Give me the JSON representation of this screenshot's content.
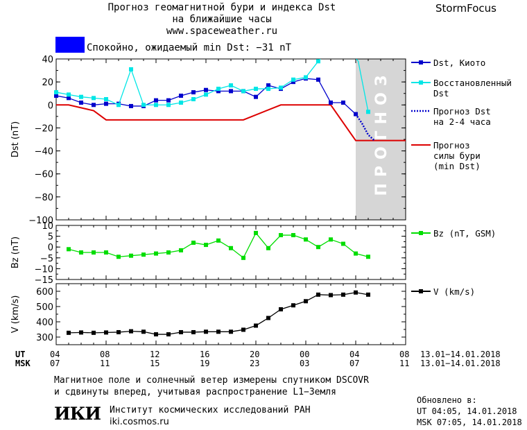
{
  "header": {
    "title_line1": "Прогноз геомагнитной бури и индекса Dst",
    "title_line2": "на ближайшие часы",
    "url": "www.spaceweather.ru",
    "brand": "StormFocus"
  },
  "status": {
    "color": "#0000ff",
    "text": "Спокойно, ожидаемый min Dst: −31 nT"
  },
  "time_axis": {
    "ut_label": "UT",
    "msk_label": "MSK",
    "ut_ticks": [
      "04",
      "08",
      "12",
      "16",
      "20",
      "00",
      "04",
      "08"
    ],
    "msk_ticks": [
      "07",
      "11",
      "15",
      "19",
      "23",
      "03",
      "07",
      "11"
    ],
    "ut_range": "13.01−14.01.2018",
    "msk_range": "13.01−14.01.2018"
  },
  "footer": {
    "line1": "Магнитное поле и солнечный ветер измерены спутником DSCOVR",
    "line2": "и сдвинуты вперед, учитывая распространение L1−Земля",
    "logo": "ИКИ",
    "institute": "Институт космических исследований РАН",
    "institute_url": "iki.cosmos.ru",
    "updated_label": "Обновлено в:",
    "updated_ut": "UT   04:05, 14.01.2018",
    "updated_msk": "MSK 07:05, 14.01.2018"
  },
  "chart_data": [
    {
      "type": "line",
      "id": "dst",
      "ylabel": "Dst (nT)",
      "ylim": [
        -100,
        40
      ],
      "yticks": [
        40,
        20,
        0,
        -20,
        -40,
        -60,
        -80,
        -100
      ],
      "x_hours_range": [
        4,
        32
      ],
      "forecast_label": "ПРОГНОЗ",
      "forecast_band_hours": [
        28,
        32
      ],
      "series": [
        {
          "name": "Dst, Киото",
          "color": "#0000cc",
          "marker": "square",
          "x": [
            4,
            5,
            6,
            7,
            8,
            9,
            10,
            11,
            12,
            13,
            14,
            15,
            16,
            17,
            18,
            19,
            20,
            21,
            22,
            23,
            24,
            25,
            26,
            27,
            28
          ],
          "y": [
            8,
            6,
            2,
            0,
            1,
            1,
            -1,
            -1,
            4,
            4,
            8,
            11,
            13,
            12,
            12,
            12,
            7,
            17,
            14,
            20,
            23,
            22,
            2,
            2,
            -8
          ]
        },
        {
          "name": "Восстановленный Dst",
          "color": "#00e6e6",
          "marker": "square",
          "x": [
            4,
            5,
            6,
            7,
            8,
            9,
            10,
            11,
            12,
            13,
            14,
            15,
            16,
            17,
            18,
            19,
            20,
            21,
            22,
            23,
            24,
            25,
            25.3,
            27.9,
            28.2,
            29
          ],
          "y": [
            11,
            9,
            7,
            6,
            5,
            0,
            31,
            0,
            0,
            0,
            2,
            5,
            9,
            14,
            17,
            12,
            14,
            14,
            15,
            22,
            24,
            38,
            42,
            42,
            38,
            -6
          ]
        },
        {
          "name": "Прогноз Dst на 2-4 часа",
          "color": "#0000cc",
          "marker": "none",
          "dash": true,
          "x": [
            28,
            28.5,
            29,
            29.5
          ],
          "y": [
            -8,
            -16,
            -26,
            -31
          ]
        },
        {
          "name": "Прогноз силы бури (min Dst)",
          "color": "#dd0000",
          "marker": "none",
          "x": [
            4,
            5,
            7,
            8,
            19,
            22,
            26,
            28,
            32
          ],
          "y": [
            0,
            0,
            -5,
            -13,
            -13,
            0,
            0,
            -31,
            -31
          ]
        }
      ]
    },
    {
      "type": "line",
      "id": "bz",
      "ylabel": "Bz (nT)",
      "ylim": [
        -15,
        10
      ],
      "yticks": [
        10,
        5,
        0,
        -5,
        -10,
        -15
      ],
      "series": [
        {
          "name": "Bz (nT, GSM)",
          "color": "#00dd00",
          "marker": "square",
          "x": [
            5,
            6,
            7,
            8,
            9,
            10,
            11,
            12,
            13,
            14,
            15,
            16,
            17,
            18,
            19,
            20,
            21,
            22,
            23,
            24,
            25,
            26,
            27,
            28,
            29
          ],
          "y": [
            -1,
            -2.5,
            -2.5,
            -2.5,
            -4.5,
            -4,
            -3.5,
            -3,
            -2.5,
            -1.5,
            2,
            1,
            3,
            -0.5,
            -5,
            6.5,
            -0.5,
            5.5,
            5.5,
            3.5,
            0,
            3.5,
            1.5,
            -3,
            -4.5
          ]
        }
      ]
    },
    {
      "type": "line",
      "id": "v",
      "ylabel": "V (km/s)",
      "ylim": [
        250,
        650
      ],
      "yticks": [
        600,
        500,
        400,
        300
      ],
      "series": [
        {
          "name": "V (km/s)",
          "color": "#000000",
          "marker": "square",
          "x": [
            5,
            6,
            7,
            8,
            9,
            10,
            11,
            12,
            13,
            14,
            15,
            16,
            17,
            18,
            19,
            20,
            21,
            22,
            23,
            24,
            25,
            26,
            27,
            28,
            29
          ],
          "y": [
            328,
            330,
            328,
            330,
            332,
            338,
            335,
            318,
            318,
            332,
            332,
            335,
            335,
            335,
            348,
            375,
            425,
            482,
            508,
            535,
            578,
            575,
            578,
            592,
            578
          ]
        }
      ]
    }
  ]
}
